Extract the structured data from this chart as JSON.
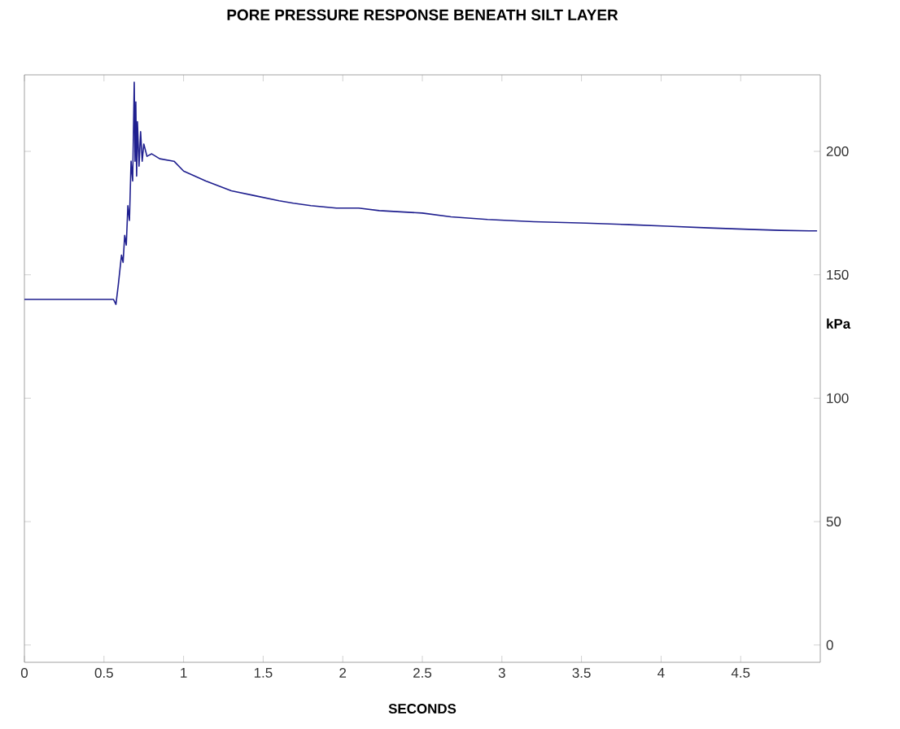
{
  "chart_data": {
    "type": "line",
    "title": "PORE PRESSURE RESPONSE BENEATH SILT LAYER",
    "xlabel": "SECONDS",
    "ylabel": "kPa",
    "xlim": [
      0,
      5
    ],
    "ylim": [
      -7,
      231
    ],
    "xticks": [
      0,
      0.5,
      1,
      1.5,
      2,
      2.5,
      3,
      3.5,
      4,
      4.5
    ],
    "yticks": [
      0,
      50,
      100,
      150,
      200
    ],
    "series": [
      {
        "color": "#1f1f8f",
        "x": [
          0,
          0.2,
          0.4,
          0.56,
          0.575,
          0.59,
          0.6,
          0.61,
          0.62,
          0.63,
          0.64,
          0.65,
          0.66,
          0.67,
          0.68,
          0.69,
          0.695,
          0.7,
          0.705,
          0.71,
          0.72,
          0.73,
          0.74,
          0.75,
          0.77,
          0.8,
          0.85,
          0.94,
          1.0,
          1.14,
          1.3,
          1.45,
          1.6,
          1.69,
          1.8,
          1.96,
          2.1,
          2.23,
          2.5,
          2.68,
          2.91,
          3.2,
          3.53,
          3.8,
          4.04,
          4.3,
          4.55,
          4.75,
          4.93,
          4.98
        ],
        "values": [
          140,
          140,
          140,
          140,
          138,
          146,
          152,
          158,
          155,
          166,
          162,
          178,
          172,
          196,
          188,
          228,
          196,
          220,
          190,
          212,
          194,
          208,
          196,
          203,
          198,
          199,
          197,
          196,
          192,
          188,
          184,
          182,
          180,
          179,
          178,
          177,
          177,
          176,
          175,
          173.5,
          172.4,
          171.5,
          170.9,
          170.3,
          169.7,
          169,
          168.4,
          168,
          167.8,
          167.8
        ]
      }
    ]
  }
}
